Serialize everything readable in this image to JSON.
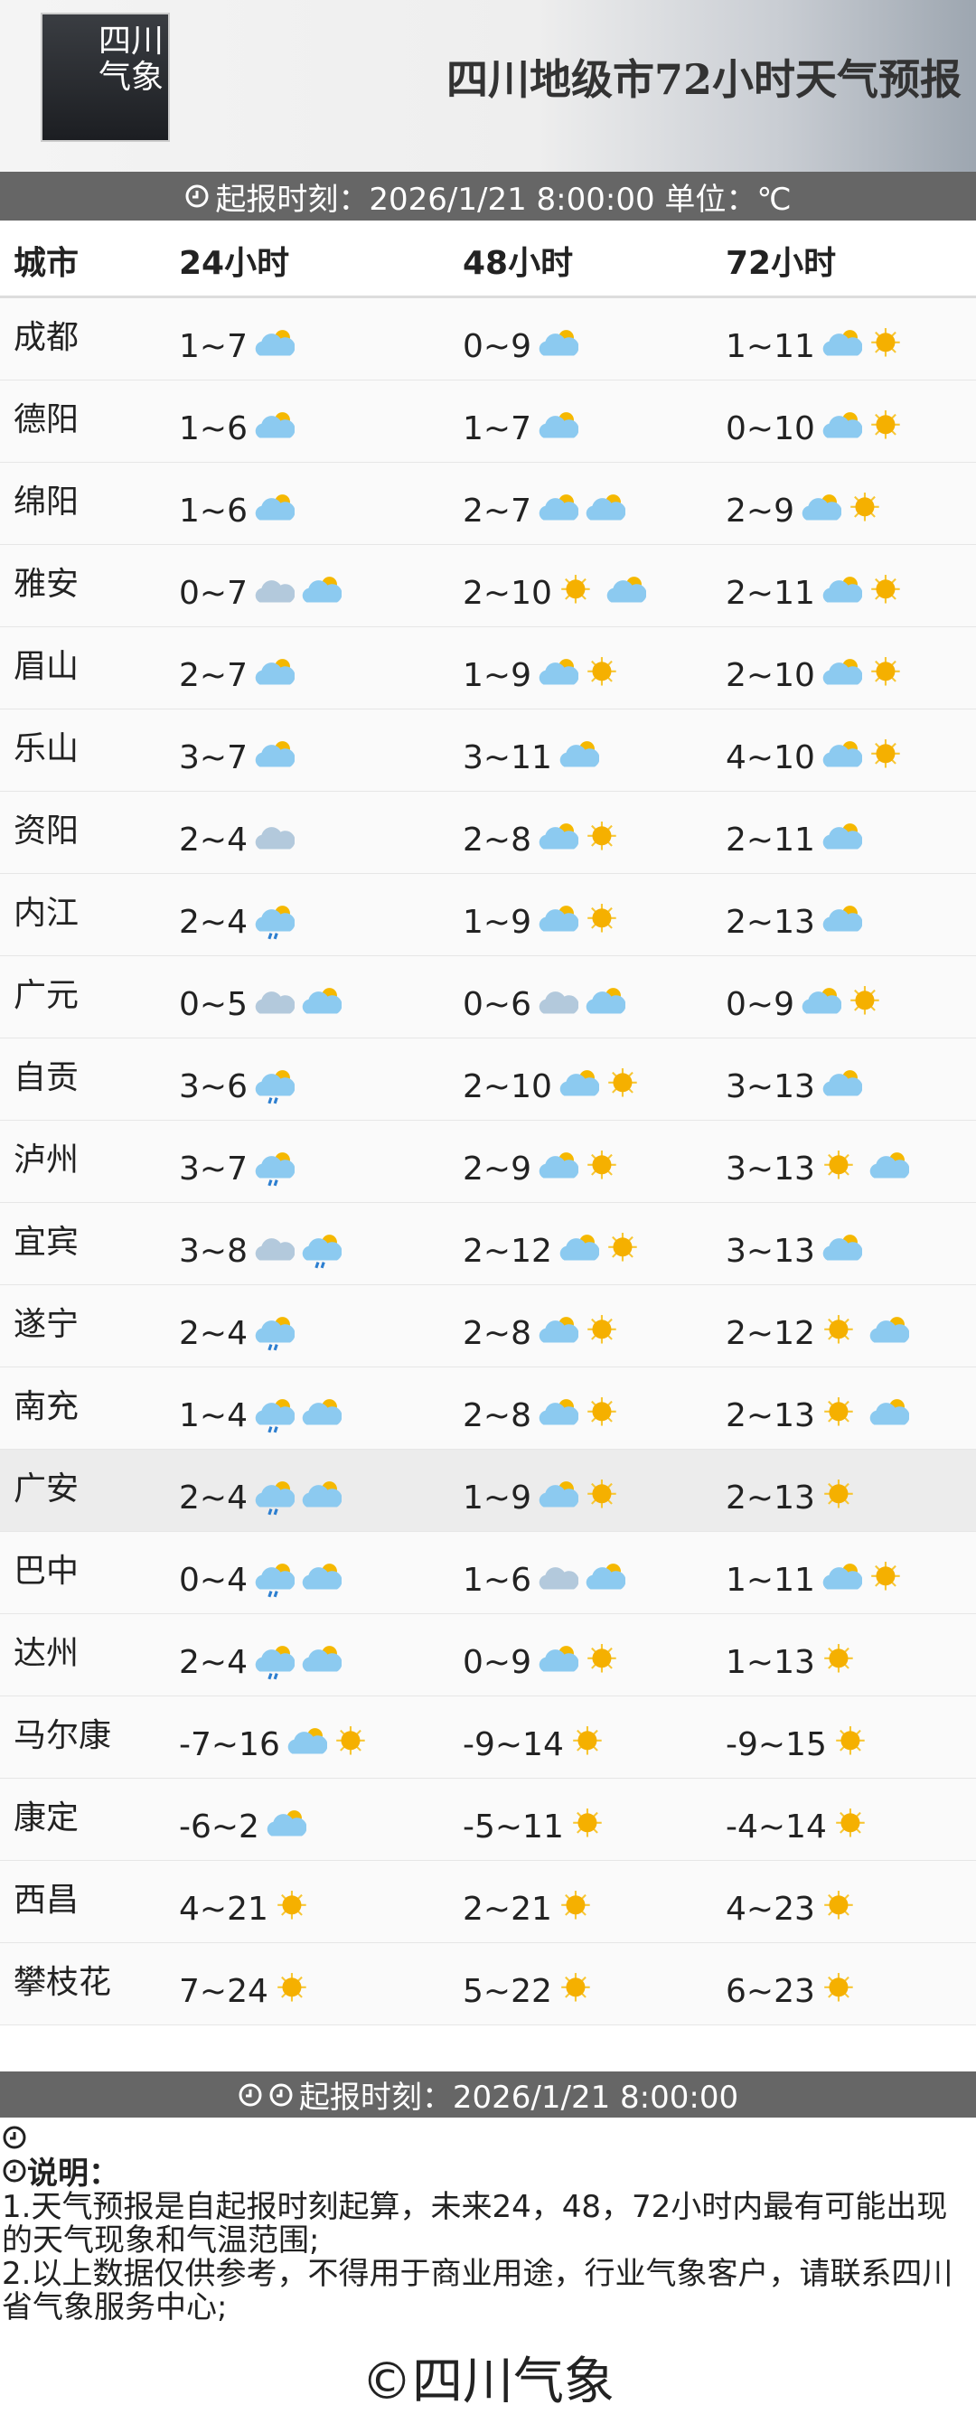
{
  "header": {
    "logo": [
      "四川",
      "气象"
    ],
    "title": "四川地级市72小时天气预报"
  },
  "report_bar": "起报时刻：2026/1/21 8:00:00 单位：℃",
  "table": {
    "columns": [
      "城市",
      "24小时",
      "48小时",
      "72小时"
    ],
    "rows": [
      [
        "成都",
        "1~7",
        "0~9",
        "1~11"
      ],
      [
        "德阳",
        "1~6",
        "1~7",
        "0~10"
      ],
      [
        "绵阳",
        "1~6",
        "2~7",
        "2~9"
      ],
      [
        "雅安",
        "0~7",
        "2~10",
        "2~11"
      ],
      [
        "眉山",
        "2~7",
        "1~9",
        "2~10"
      ],
      [
        "乐山",
        "3~7",
        "3~11",
        "4~10"
      ],
      [
        "资阳",
        "2~4",
        "2~8",
        "2~11"
      ],
      [
        "内江",
        "2~4",
        "1~9",
        "2~13"
      ],
      [
        "广元",
        "0~5",
        "0~6",
        "0~9"
      ],
      [
        "自贡",
        "3~6",
        "2~10",
        "3~13"
      ],
      [
        "泸州",
        "3~7",
        "2~9",
        "3~13"
      ],
      [
        "宜宾",
        "3~8",
        "2~12",
        "3~13"
      ],
      [
        "遂宁",
        "2~4",
        "2~8",
        "2~12"
      ],
      [
        "南充",
        "1~4",
        "2~8",
        "2~13"
      ],
      [
        "广安",
        "2~4",
        "1~9",
        "2~13"
      ],
      [
        "巴中",
        "0~4",
        "1~6",
        "1~11"
      ],
      [
        "达州",
        "2~4",
        "0~9",
        "1~13"
      ],
      [
        "马尔康",
        "-7~16",
        "-9~14",
        "-9~15"
      ],
      [
        "康定",
        "-6~2",
        "-5~11",
        "-4~14"
      ],
      [
        "西昌",
        "4~21",
        "2~21",
        "4~23"
      ],
      [
        "攀枝花",
        "7~24",
        "5~22",
        "6~23"
      ]
    ]
  },
  "footer_bar": "起报时刻：2026/1/21 8:00:00",
  "notes": {
    "heading": "说明：",
    "items": [
      "1.天气预报是自起报时刻起算，未来24，48，72小时内最有可能出现的天气现象和气温范围;",
      "2.以上数据仅供参考，不得用于商业用途，行业气象客户，请联系四川省气象服务中心;"
    ]
  },
  "footer": "©四川气象"
}
